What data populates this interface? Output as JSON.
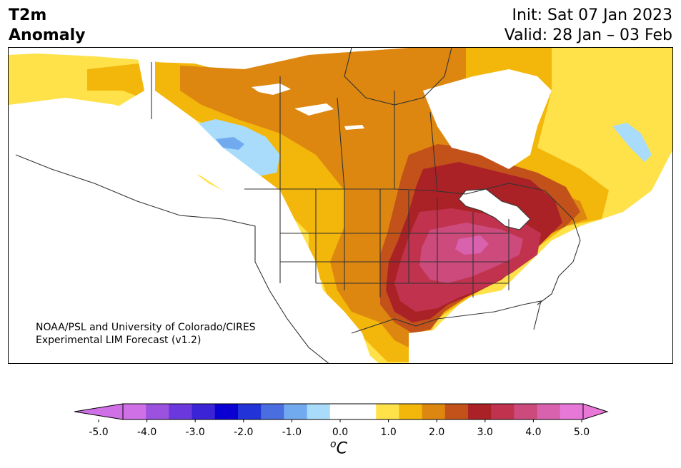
{
  "header": {
    "title_line1": "T2m",
    "title_line2": "Anomaly",
    "init": "Init: Sat 07 Jan 2023",
    "valid": "Valid: 28 Jan – 03 Feb"
  },
  "credit": {
    "line1": "NOAA/PSL and University of Colorado/CIRES",
    "line2": "Experimental LIM Forecast (v1.2)"
  },
  "colorbar": {
    "unit_symbol": "C",
    "unit_prefix": "o",
    "ticks": [
      "-5.0",
      "-4.0",
      "-3.0",
      "-2.0",
      "-1.0",
      "0.0",
      "1.0",
      "2.0",
      "3.0",
      "4.0",
      "5.0"
    ],
    "colors": [
      "#d070e6",
      "#9a52df",
      "#6a38dc",
      "#3a24d6",
      "#0a00d2",
      "#2233d8",
      "#4a6edf",
      "#72aaf0",
      "#a8dcfa",
      "#ffffff",
      "#ffffff",
      "#ffe14a",
      "#f3b60a",
      "#dd8710",
      "#c3521a",
      "#ab2226",
      "#c0324e",
      "#cc4a7c",
      "#d862ad",
      "#e878d8"
    ],
    "min_extend_color": "#d070e6",
    "max_extend_color": "#e878d8"
  },
  "map_colors": {
    "yellow": "#ffe14a",
    "gold": "#f3b60a",
    "orange": "#dd8710",
    "dark_orange": "#c3521a",
    "red": "#ab2226",
    "crimson": "#c0324e",
    "rose": "#cc4a7c",
    "pink": "#d862ad",
    "light_blue": "#a8dcfa",
    "blue": "#72aaf0"
  }
}
